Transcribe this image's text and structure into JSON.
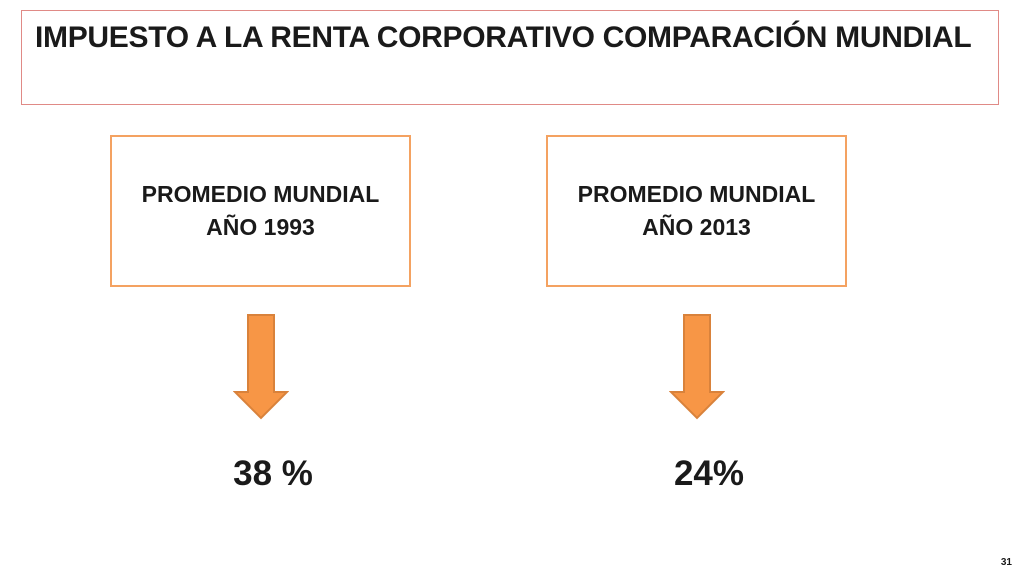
{
  "slide": {
    "title": "IMPUESTO A LA RENTA CORPORATIVO COMPARACIÓN MUNDIAL",
    "page_number": "31"
  },
  "cards": [
    {
      "line1": "PROMEDIO MUNDIAL",
      "line2": "AÑO 1993",
      "value": "38 %"
    },
    {
      "line1": "PROMEDIO MUNDIAL",
      "line2": "AÑO 2013",
      "value": "24%"
    }
  ],
  "colors": {
    "title_border": "#e08a86",
    "card_border": "#f4a261",
    "arrow_fill": "#f79646",
    "arrow_stroke": "#d9823b"
  },
  "icons": {
    "arrow": "arrow-down-icon"
  }
}
